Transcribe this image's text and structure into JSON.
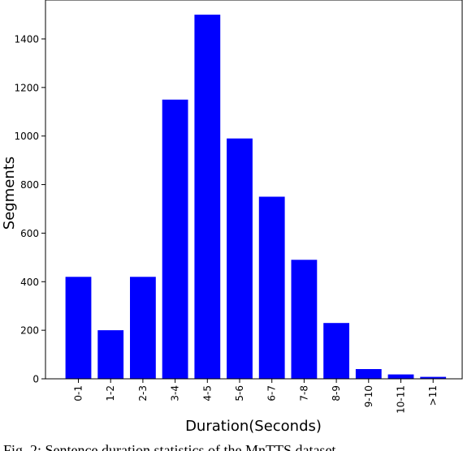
{
  "chart_data": {
    "type": "bar",
    "categories": [
      "0-1",
      "1-2",
      "2-3",
      "3-4",
      "4-5",
      "5-6",
      "6-7",
      "7-8",
      "8-9",
      "9-10",
      "10-11",
      ">11"
    ],
    "values": [
      420,
      200,
      420,
      1150,
      1500,
      990,
      750,
      490,
      230,
      40,
      18,
      8
    ],
    "xlabel": "Duration(Seconds)",
    "ylabel": "Segments",
    "ylim": [
      0,
      1600
    ],
    "yticks": [
      0,
      200,
      400,
      600,
      800,
      1000,
      1200,
      1400
    ],
    "bar_color": "#0000ff",
    "grid": false
  },
  "caption": "Fig. 2: Sentence duration statistics of the MnTTS dataset"
}
